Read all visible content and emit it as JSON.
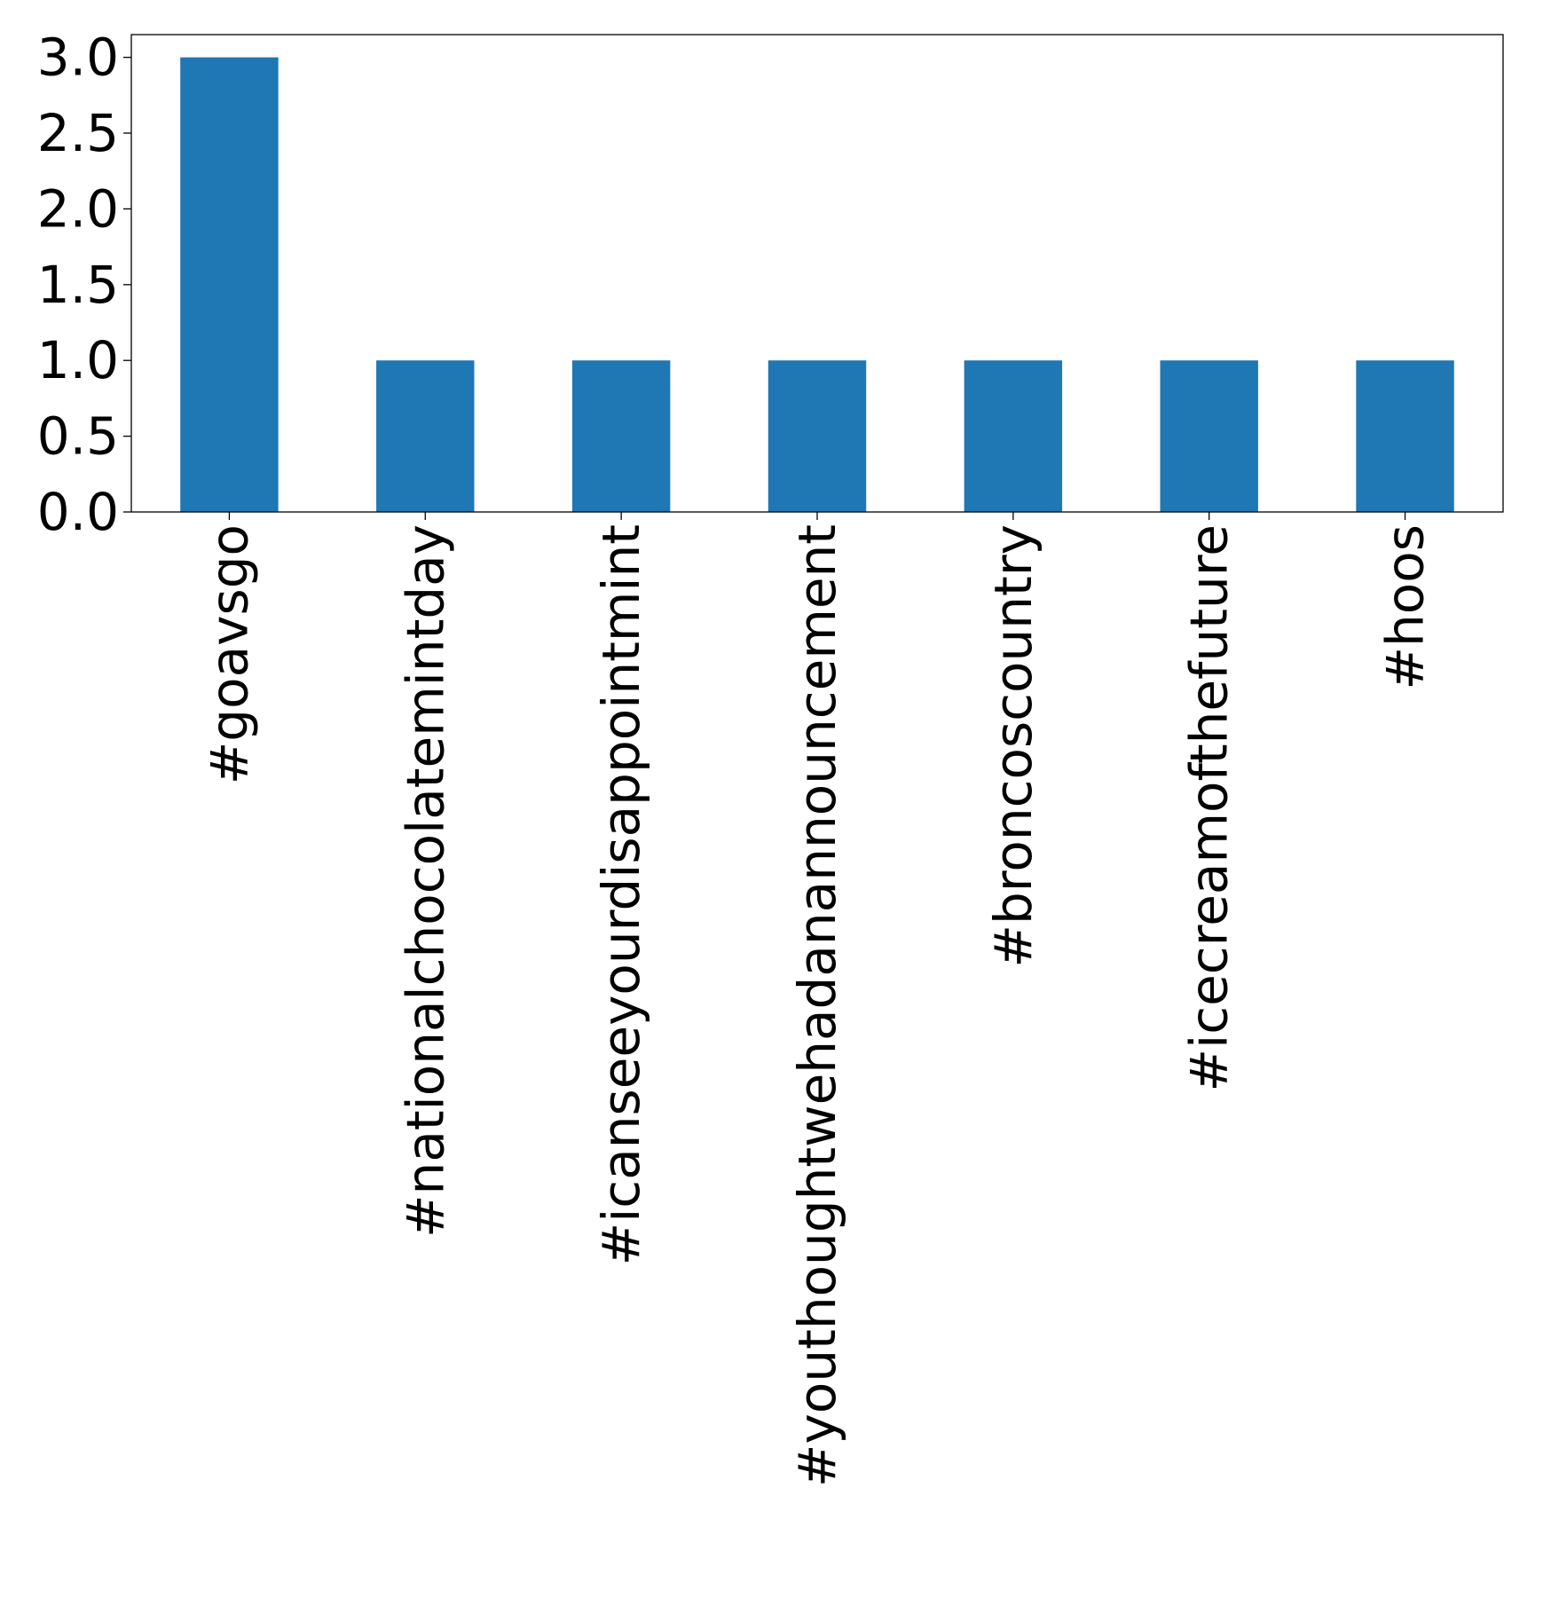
{
  "chart_data": {
    "type": "bar",
    "title": "",
    "xlabel": "",
    "ylabel": "",
    "categories": [
      "#goavsgo",
      "#nationalchocolatemintday",
      "#icanseeyourdisappointmint",
      "#youthoughtwehadanannouncement",
      "#broncoscountry",
      "#icecreamofthefuture",
      "#hoos"
    ],
    "values": [
      3,
      1,
      1,
      1,
      1,
      1,
      1
    ],
    "ylim": [
      0,
      3.15
    ],
    "yticks": [
      0.0,
      0.5,
      1.0,
      1.5,
      2.0,
      2.5,
      3.0
    ],
    "ytick_labels": [
      "0.0",
      "0.5",
      "1.0",
      "1.5",
      "2.0",
      "2.5",
      "3.0"
    ],
    "bar_color": "#1f77b4",
    "grid": false,
    "legend": "none"
  }
}
